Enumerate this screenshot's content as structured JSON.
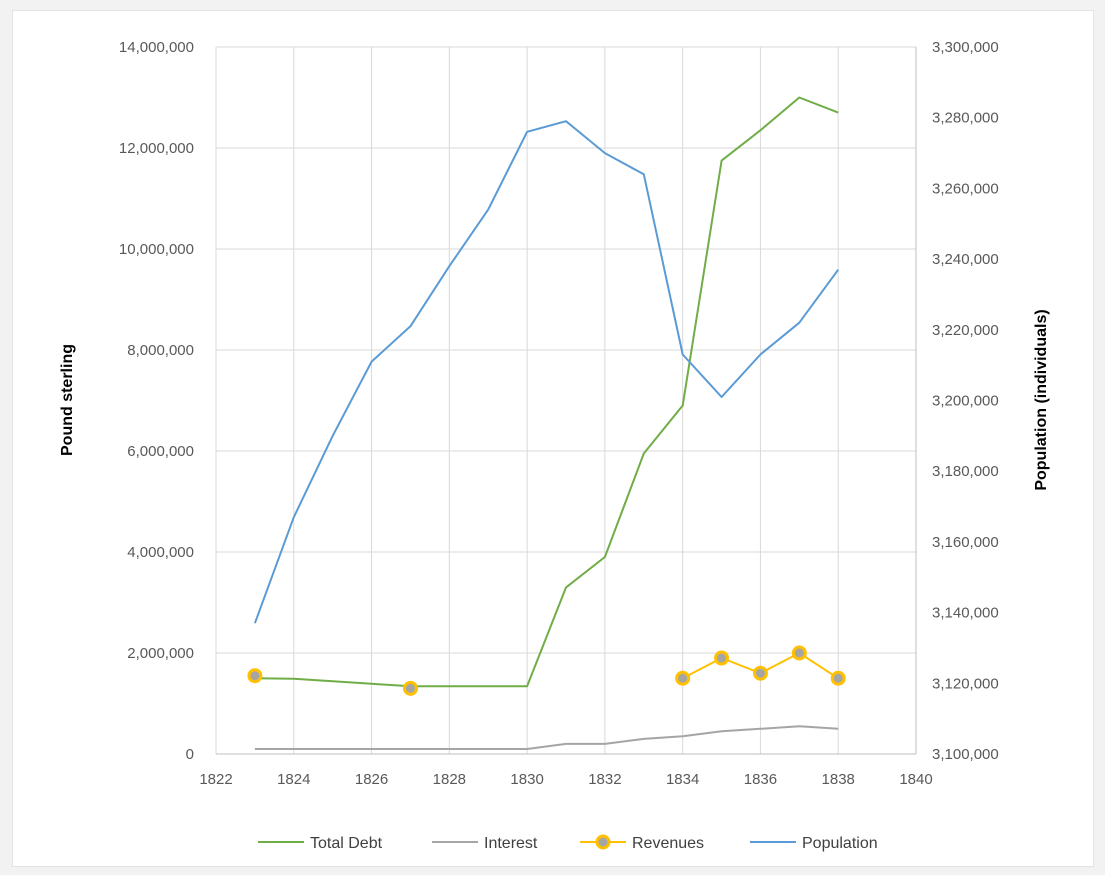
{
  "chart_data": {
    "type": "line",
    "title": "",
    "x": [
      1823,
      1824,
      1825,
      1826,
      1827,
      1828,
      1829,
      1830,
      1831,
      1832,
      1833,
      1834,
      1835,
      1836,
      1837,
      1838
    ],
    "xlim": [
      1822,
      1840
    ],
    "x_ticks": [
      "1822",
      "1824",
      "1826",
      "1828",
      "1830",
      "1832",
      "1834",
      "1836",
      "1838",
      "1840"
    ],
    "ylabel": "Pound sterling",
    "ylim": [
      0,
      14000000
    ],
    "y_ticks": [
      "0",
      "2,000,000",
      "4,000,000",
      "6,000,000",
      "8,000,000",
      "10,000,000",
      "12,000,000",
      "14,000,000"
    ],
    "y2label": "Population (individuals)",
    "y2lim": [
      3100000,
      3300000
    ],
    "y2_ticks": [
      "3,100,000",
      "3,120,000",
      "3,140,000",
      "3,160,000",
      "3,180,000",
      "3,200,000",
      "3,220,000",
      "3,240,000",
      "3,260,000",
      "3,280,000",
      "3,300,000"
    ],
    "grid": "vertical and horizontal",
    "legend_position": "bottom",
    "series": [
      {
        "name": "Total Debt",
        "axis": "left",
        "color": "#70ad47",
        "markers": false,
        "values": [
          1500000,
          1490000,
          1440000,
          1390000,
          1340000,
          1340000,
          1340000,
          1340000,
          3300000,
          3900000,
          5950000,
          6900000,
          11750000,
          12350000,
          13000000,
          12700000
        ]
      },
      {
        "name": "Interest",
        "axis": "left",
        "color": "#a5a5a5",
        "markers": false,
        "values": [
          100000,
          100000,
          100000,
          100000,
          100000,
          100000,
          100000,
          100000,
          200000,
          200000,
          300000,
          350000,
          450000,
          500000,
          550000,
          500000
        ]
      },
      {
        "name": "Revenues",
        "axis": "left",
        "color": "#ffc000",
        "markers": true,
        "values": [
          1550000,
          null,
          null,
          null,
          1300000,
          null,
          null,
          null,
          null,
          null,
          null,
          1500000,
          1900000,
          1600000,
          2000000,
          1500000
        ]
      },
      {
        "name": "Population",
        "axis": "right",
        "color": "#5b9bd5",
        "markers": false,
        "values": [
          3137000,
          3167000,
          3190000,
          3211000,
          3221000,
          3238000,
          3254000,
          3276000,
          3279000,
          3270000,
          3264000,
          3213000,
          3201000,
          3213000,
          3222000,
          3237000
        ]
      }
    ]
  }
}
